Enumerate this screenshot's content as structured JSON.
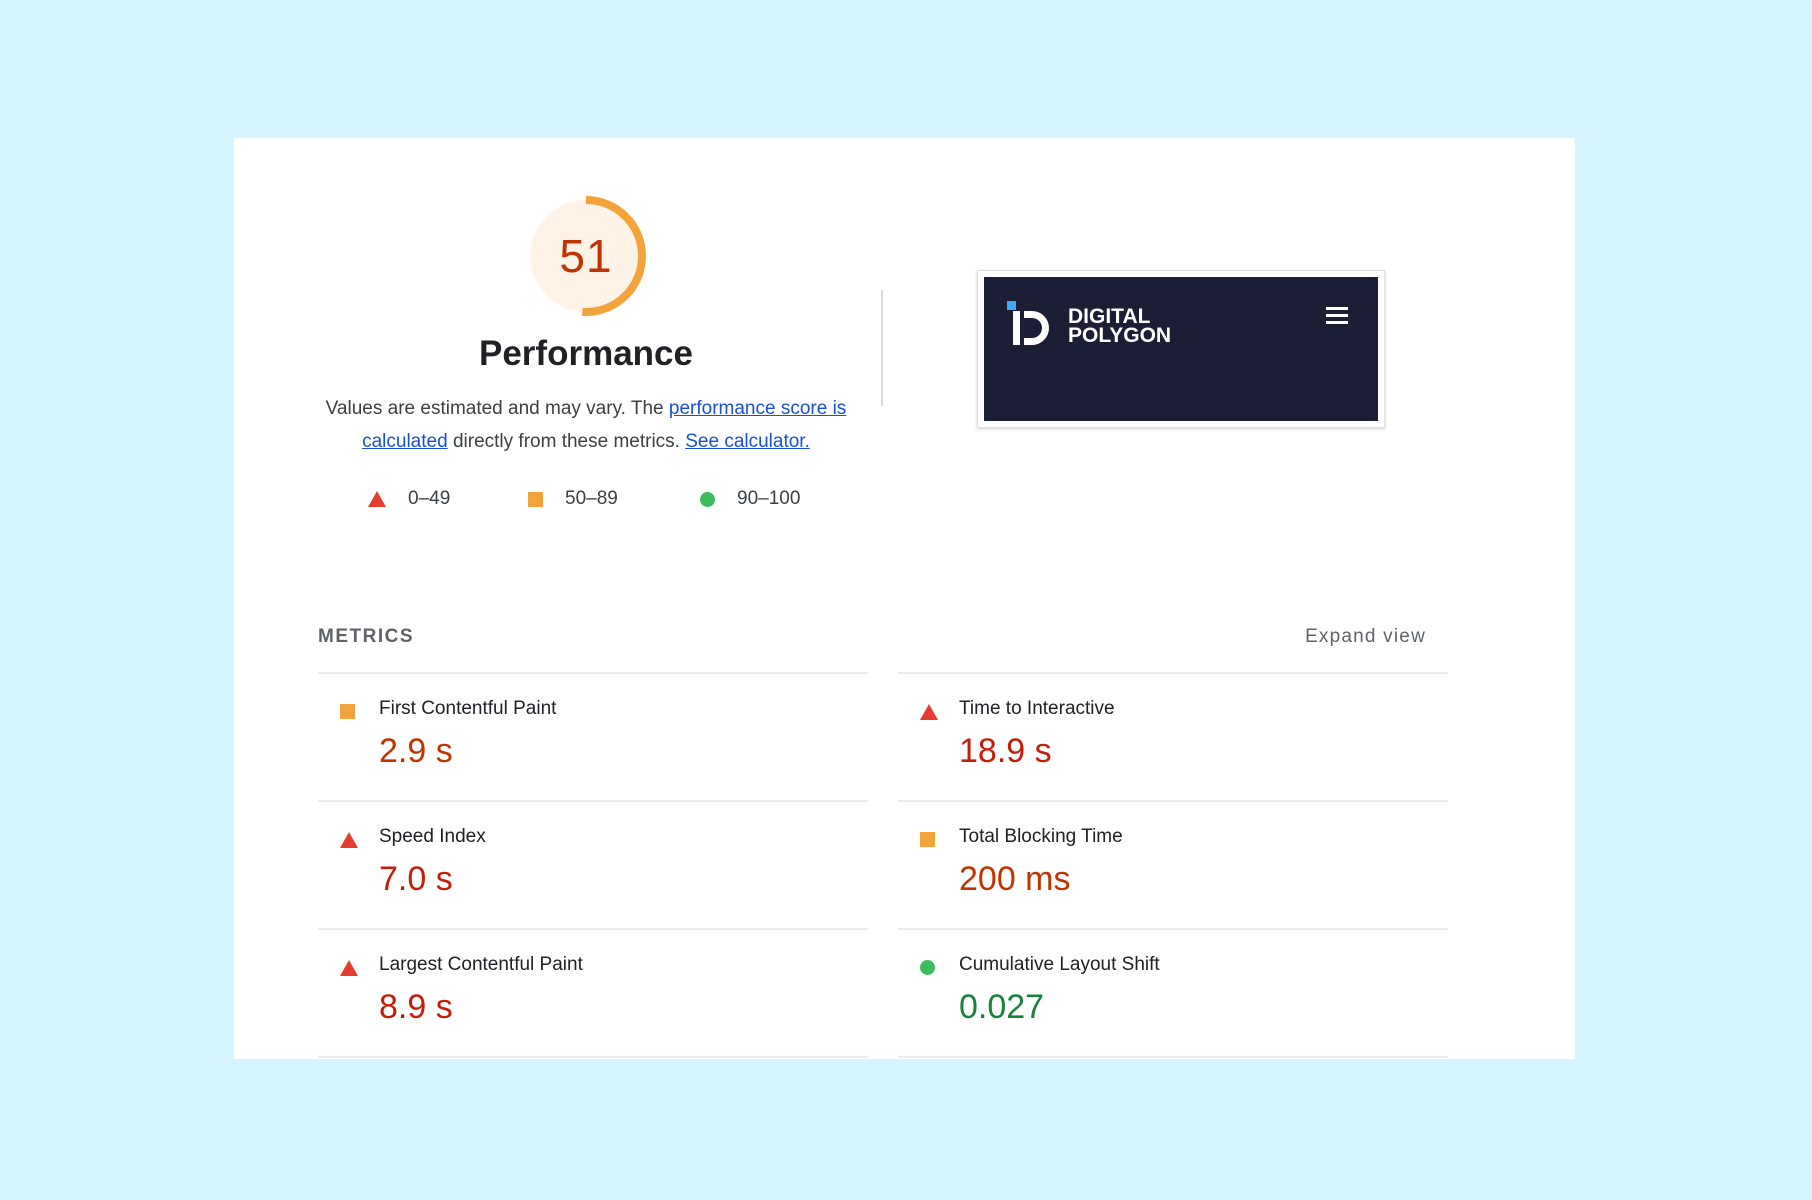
{
  "gauge": {
    "score": "51",
    "score_fraction": 0.51,
    "title": "Performance",
    "colors": {
      "arc": "#f2a33a",
      "fill": "#fff3e8",
      "text": "#c33300"
    }
  },
  "description": {
    "text_1": "Values are estimated and may vary. The ",
    "link_1": "performance score is calculated",
    "text_2": " directly from these metrics. ",
    "link_2": "See calculator."
  },
  "legend": [
    {
      "shape": "triangle",
      "color": "#e43d30",
      "range": "0–49"
    },
    {
      "shape": "square",
      "color": "#f2a33a",
      "range": "50–89"
    },
    {
      "shape": "circle",
      "color": "#3dbb5d",
      "range": "90–100"
    }
  ],
  "thumbnail": {
    "logo_line_1": "DIGITAL",
    "logo_line_2": "POLYGON",
    "menu_icon": "hamburger-menu-icon",
    "background": "#1c1e36"
  },
  "metrics": {
    "header": "METRICS",
    "expand_label": "Expand view",
    "left": [
      {
        "name": "First Contentful Paint",
        "value": "2.9 s",
        "rating": "average"
      },
      {
        "name": "Speed Index",
        "value": "7.0 s",
        "rating": "poor"
      },
      {
        "name": "Largest Contentful Paint",
        "value": "8.9 s",
        "rating": "poor"
      }
    ],
    "right": [
      {
        "name": "Time to Interactive",
        "value": "18.9 s",
        "rating": "poor"
      },
      {
        "name": "Total Blocking Time",
        "value": "200 ms",
        "rating": "average"
      },
      {
        "name": "Cumulative Layout Shift",
        "value": "0.027",
        "rating": "good"
      }
    ]
  }
}
